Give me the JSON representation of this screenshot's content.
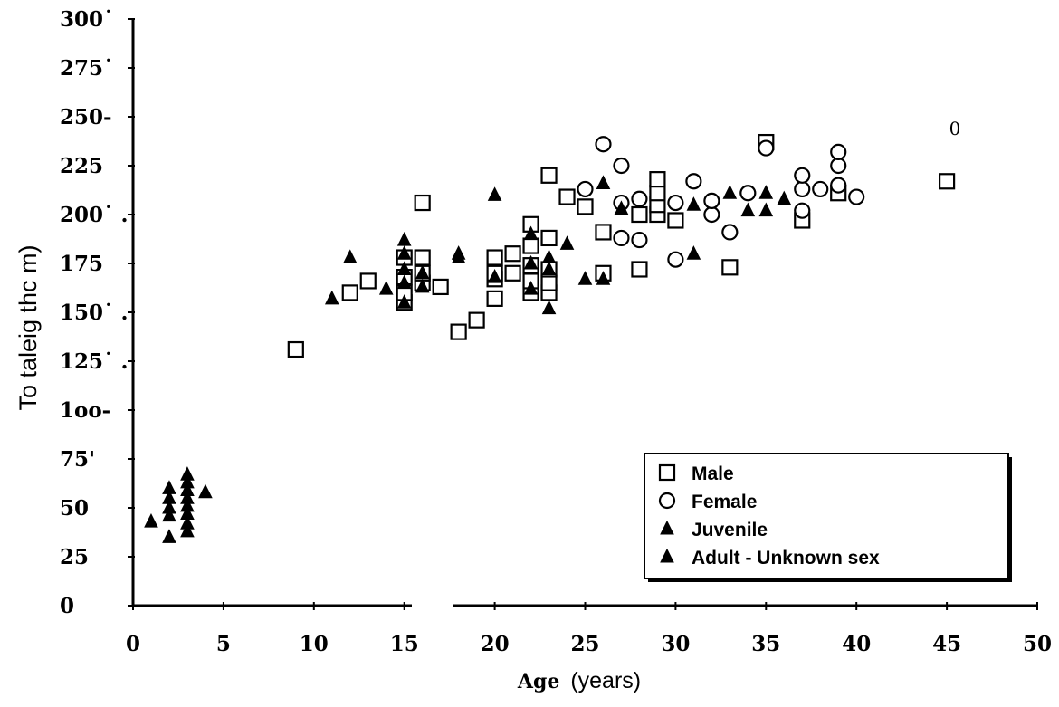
{
  "chart_data": {
    "type": "scatter",
    "title": "",
    "xlabel_bold": "Age",
    "xlabel_rest": "(years)",
    "ylabel": "To taleig   thc m)",
    "xlim": [
      0,
      50
    ],
    "ylim": [
      0,
      300
    ],
    "x_ticks": [
      "0",
      "5",
      "10",
      "15",
      "20",
      "25",
      "30",
      "35",
      "40",
      "45",
      "50"
    ],
    "x_tick_values": [
      0,
      5,
      10,
      15,
      20,
      25,
      30,
      35,
      40,
      45,
      50
    ],
    "y_ticks": [
      "0",
      "25",
      "50",
      "75'",
      "1oo-",
      "125˙ .",
      "150˙ .",
      "175",
      "200˙ .",
      "225",
      "250-",
      "275˙",
      "300˙"
    ],
    "y_tick_values": [
      0,
      25,
      50,
      75,
      100,
      125,
      150,
      175,
      200,
      225,
      250,
      275,
      300
    ],
    "corner_mark": "0",
    "legend_position": "bottom-right",
    "grid": false,
    "legend": [
      {
        "label": "Male",
        "marker": "square"
      },
      {
        "label": "Female",
        "marker": "circle"
      },
      {
        "label": "Juvenile",
        "marker": "triangle"
      },
      {
        "label": "Adult - Unknown sex",
        "marker": "triangle"
      }
    ],
    "series": [
      {
        "name": "Male",
        "marker": "square",
        "points": [
          [
            9,
            131
          ],
          [
            12,
            160
          ],
          [
            13,
            166
          ],
          [
            15,
            155
          ],
          [
            15,
            160
          ],
          [
            15,
            168
          ],
          [
            15,
            178
          ],
          [
            16,
            165
          ],
          [
            16,
            170
          ],
          [
            16,
            178
          ],
          [
            16,
            206
          ],
          [
            17,
            163
          ],
          [
            18,
            140
          ],
          [
            19,
            146
          ],
          [
            20,
            157
          ],
          [
            20,
            167
          ],
          [
            20,
            170
          ],
          [
            20,
            178
          ],
          [
            21,
            170
          ],
          [
            21,
            180
          ],
          [
            22,
            160
          ],
          [
            22,
            166
          ],
          [
            22,
            174
          ],
          [
            22,
            184
          ],
          [
            22,
            195
          ],
          [
            23,
            160
          ],
          [
            23,
            165
          ],
          [
            23,
            172
          ],
          [
            23,
            188
          ],
          [
            23,
            220
          ],
          [
            24,
            209
          ],
          [
            25,
            204
          ],
          [
            26,
            170
          ],
          [
            26,
            191
          ],
          [
            28,
            172
          ],
          [
            28,
            200
          ],
          [
            29,
            200
          ],
          [
            29,
            205
          ],
          [
            29,
            211
          ],
          [
            29,
            218
          ],
          [
            30,
            197
          ],
          [
            33,
            173
          ],
          [
            35,
            237
          ],
          [
            37,
            197
          ],
          [
            39,
            211
          ],
          [
            45,
            217
          ]
        ]
      },
      {
        "name": "Female",
        "marker": "circle",
        "points": [
          [
            25,
            213
          ],
          [
            26,
            236
          ],
          [
            27,
            188
          ],
          [
            27,
            206
          ],
          [
            27,
            225
          ],
          [
            28,
            187
          ],
          [
            28,
            208
          ],
          [
            30,
            177
          ],
          [
            30,
            206
          ],
          [
            31,
            217
          ],
          [
            32,
            200
          ],
          [
            32,
            207
          ],
          [
            33,
            191
          ],
          [
            34,
            211
          ],
          [
            35,
            234
          ],
          [
            37,
            202
          ],
          [
            37,
            213
          ],
          [
            37,
            220
          ],
          [
            38,
            213
          ],
          [
            39,
            215
          ],
          [
            39,
            225
          ],
          [
            39,
            232
          ],
          [
            40,
            209
          ]
        ]
      },
      {
        "name": "Juvenile",
        "marker": "triangle",
        "points": [
          [
            1,
            43
          ],
          [
            2,
            35
          ],
          [
            2,
            46
          ],
          [
            2,
            50
          ],
          [
            2,
            55
          ],
          [
            2,
            60
          ],
          [
            3,
            38
          ],
          [
            3,
            42
          ],
          [
            3,
            47
          ],
          [
            3,
            51
          ],
          [
            3,
            55
          ],
          [
            3,
            59
          ],
          [
            3,
            63
          ],
          [
            3,
            67
          ],
          [
            4,
            58
          ]
        ]
      },
      {
        "name": "Adult - Unknown sex",
        "marker": "triangle",
        "points": [
          [
            11,
            157
          ],
          [
            12,
            178
          ],
          [
            14,
            162
          ],
          [
            15,
            155
          ],
          [
            15,
            165
          ],
          [
            15,
            172
          ],
          [
            15,
            180
          ],
          [
            15,
            187
          ],
          [
            16,
            163
          ],
          [
            16,
            170
          ],
          [
            18,
            178
          ],
          [
            18,
            180
          ],
          [
            20,
            168
          ],
          [
            20,
            210
          ],
          [
            22,
            162
          ],
          [
            22,
            175
          ],
          [
            22,
            190
          ],
          [
            23,
            152
          ],
          [
            23,
            172
          ],
          [
            23,
            178
          ],
          [
            24,
            185
          ],
          [
            25,
            167
          ],
          [
            26,
            167
          ],
          [
            26,
            216
          ],
          [
            27,
            203
          ],
          [
            31,
            180
          ],
          [
            31,
            205
          ],
          [
            33,
            211
          ],
          [
            34,
            202
          ],
          [
            35,
            202
          ],
          [
            35,
            211
          ],
          [
            36,
            208
          ]
        ]
      }
    ]
  }
}
